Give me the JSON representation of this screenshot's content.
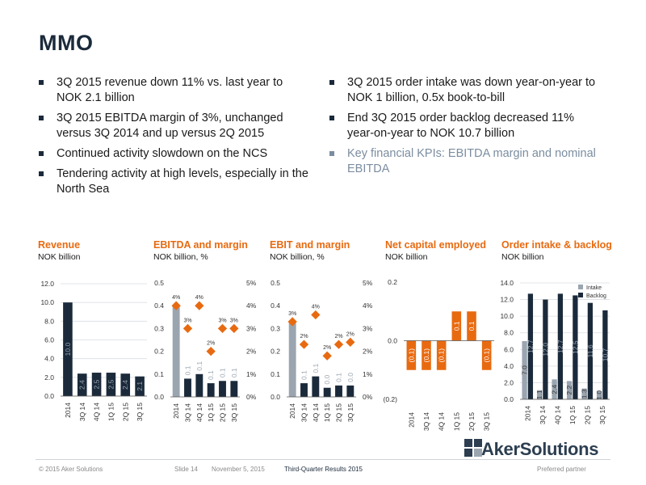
{
  "page_title": "MMO",
  "bullets_left": [
    "3Q 2015 revenue down 11% vs. last year to NOK 2.1 billion",
    "3Q 2015 EBITDA margin of 3%, unchanged versus 3Q 2014 and up versus 2Q 2015",
    "Continued activity slowdown on the NCS",
    "Tendering activity at high levels, especially in the North Sea"
  ],
  "bullets_right": [
    "3Q 2015 order intake was down year-on-year to NOK 1 billion, 0.5x book-to-bill",
    "End 3Q 2015 order backlog decreased 11% year-on-year to NOK 10.7 billion",
    "Key financial KPIs: EBITDA margin and nominal EBITDA"
  ],
  "colors": {
    "navy": "#1b2a3b",
    "orange": "#e86a10",
    "grey": "#9aa5b0",
    "muted": "#7b8da0"
  },
  "chart_data": [
    {
      "type": "bar",
      "title": "Revenue",
      "subtitle": "NOK billion",
      "categories": [
        "2014",
        "3Q 14",
        "4Q 14",
        "1Q 15",
        "2Q 15",
        "3Q 15"
      ],
      "values": [
        10.0,
        2.4,
        2.5,
        2.5,
        2.4,
        2.1
      ],
      "value_labels": [
        "10.0",
        "2.4",
        "2.5",
        "2.5",
        "2.4",
        "2.1"
      ],
      "ylim": [
        0,
        12
      ],
      "yticks": [
        "0.0",
        "2.0",
        "4.0",
        "6.0",
        "8.0",
        "10.0",
        "12.0"
      ],
      "grid": true
    },
    {
      "type": "bar",
      "title": "EBITDA and margin",
      "subtitle": "NOK billion, %",
      "categories": [
        "2014",
        "3Q 14",
        "4Q 14",
        "1Q 15",
        "2Q 15",
        "3Q 15"
      ],
      "values": [
        0.4,
        0.08,
        0.1,
        0.06,
        0.07,
        0.07
      ],
      "value_labels": [
        "0.4",
        "0.1",
        "0.1",
        "0.1",
        "0.1",
        "0.1"
      ],
      "margin": [
        4,
        3,
        4,
        2,
        3,
        3
      ],
      "margin_labels": [
        "4%",
        "3%",
        "4%",
        "2%",
        "3%",
        "3%"
      ],
      "ylim": [
        0,
        0.5
      ],
      "yticks": [
        "0.0",
        "0.1",
        "0.2",
        "0.3",
        "0.4",
        "0.5"
      ],
      "y2lim": [
        0,
        5
      ],
      "y2ticks": [
        "0%",
        "1%",
        "2%",
        "3%",
        "4%",
        "5%"
      ],
      "grid": false
    },
    {
      "type": "bar",
      "title": "EBIT and margin",
      "subtitle": "NOK billion, %",
      "categories": [
        "2014",
        "3Q 14",
        "4Q 14",
        "1Q 15",
        "2Q 15",
        "3Q 15"
      ],
      "values": [
        0.33,
        0.06,
        0.09,
        0.04,
        0.05,
        0.05
      ],
      "value_labels": [
        "0.3",
        "0.1",
        "0.1",
        "0.0",
        "0.1",
        "0.0"
      ],
      "margin": [
        3.3,
        2.3,
        3.6,
        1.8,
        2.3,
        2.4
      ],
      "margin_labels": [
        "3%",
        "2%",
        "4%",
        "2%",
        "2%",
        "2%"
      ],
      "ylim": [
        0,
        0.5
      ],
      "yticks": [
        "0.0",
        "0.1",
        "0.2",
        "0.3",
        "0.4",
        "0.5"
      ],
      "y2lim": [
        0,
        5
      ],
      "y2ticks": [
        "0%",
        "1%",
        "2%",
        "3%",
        "4%",
        "5%"
      ],
      "grid": false
    },
    {
      "type": "bar",
      "title": "Net capital employed",
      "subtitle": "NOK billion",
      "categories": [
        "2014",
        "3Q 14",
        "4Q 14",
        "1Q 15",
        "2Q 15",
        "3Q 15"
      ],
      "values": [
        -0.1,
        -0.1,
        -0.1,
        0.1,
        0.1,
        -0.1
      ],
      "value_labels": [
        "(0.1)",
        "(0.1)",
        "(0.1)",
        "0.1",
        "0.1",
        "(0.1)"
      ],
      "ylim": [
        -0.2,
        0.2
      ],
      "yticks": [
        "(0.2)",
        "0.0",
        "0.2"
      ],
      "grid": false
    },
    {
      "type": "bar",
      "title": "Order intake & backlog",
      "subtitle": "NOK billion",
      "categories": [
        "2014",
        "3Q 14",
        "4Q 14",
        "1Q 15",
        "2Q 15",
        "3Q 15"
      ],
      "series": [
        {
          "name": "Intake",
          "values": [
            7.0,
            1.1,
            2.4,
            2.2,
            1.3,
            1.0
          ],
          "labels": [
            "7.0",
            "1.1",
            "2.4",
            "2.2",
            "1.3",
            "1.0"
          ]
        },
        {
          "name": "Backlog",
          "values": [
            12.7,
            12.0,
            12.7,
            12.5,
            11.6,
            10.7
          ],
          "labels": [
            "12.7",
            "12.0",
            "12.7",
            "12.5",
            "11.6",
            "10.7"
          ]
        }
      ],
      "ylim": [
        0,
        14
      ],
      "yticks": [
        "0.0",
        "2.0",
        "4.0",
        "6.0",
        "8.0",
        "10.0",
        "12.0",
        "14.0"
      ],
      "legend": "top-right",
      "grid": true
    }
  ],
  "footer": {
    "copyright": "© 2015 Aker Solutions",
    "slide": "Slide 14",
    "date": "November 5, 2015",
    "event": "Third-Quarter Results 2015",
    "tagline": "Preferred partner"
  },
  "logo_text": "AkerSolutions"
}
